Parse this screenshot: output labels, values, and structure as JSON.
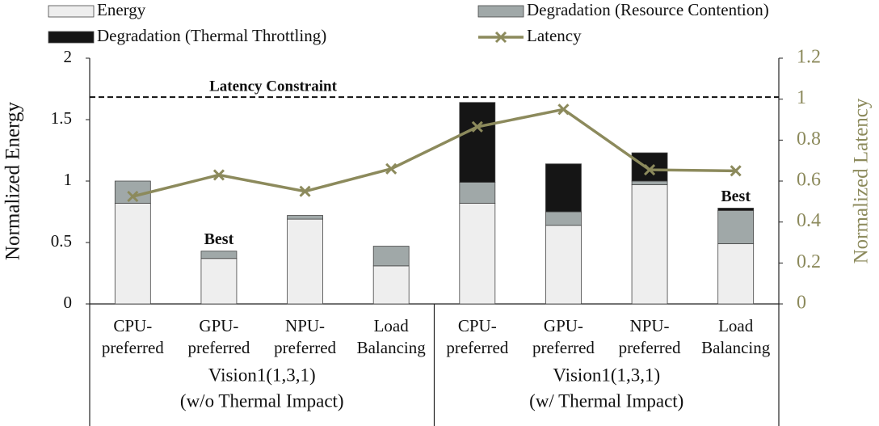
{
  "chart_data": {
    "type": "bar",
    "categories": [
      [
        "CPU-",
        "preferred"
      ],
      [
        "GPU-",
        "preferred"
      ],
      [
        "NPU-",
        "preferred"
      ],
      [
        "Load",
        "Balancing"
      ],
      [
        "CPU-",
        "preferred"
      ],
      [
        "GPU-",
        "preferred"
      ],
      [
        "NPU-",
        "preferred"
      ],
      [
        "Load",
        "Balancing"
      ]
    ],
    "groups": [
      [
        "Vision1(1,3,1)",
        "(w/o Thermal Impact)"
      ],
      [
        "Vision1(1,3,1)",
        "(w/ Thermal Impact)"
      ]
    ],
    "series": [
      {
        "name": "Energy",
        "color": "#eeeeee",
        "values": [
          0.82,
          0.37,
          0.69,
          0.31,
          0.82,
          0.64,
          0.97,
          0.49
        ]
      },
      {
        "name": "Degradation (Resource Contention)",
        "color": "#a0a8a8",
        "values": [
          0.18,
          0.06,
          0.03,
          0.16,
          0.17,
          0.11,
          0.03,
          0.27
        ]
      },
      {
        "name": "Degradation (Thermal Throttling)",
        "color": "#151515",
        "values": [
          0,
          0,
          0,
          0,
          0.65,
          0.39,
          0.23,
          0.02
        ]
      },
      {
        "name": "Latency",
        "color": "#8c8a5c",
        "type": "line",
        "axis": "y2",
        "values": [
          0.525,
          0.63,
          0.55,
          0.66,
          0.865,
          0.95,
          0.655,
          0.65
        ]
      }
    ],
    "ylabel": "Normalized Energy",
    "y2label": "Normalized Latency",
    "ylim": [
      0,
      2
    ],
    "yticks": [
      0,
      0.5,
      1,
      1.5,
      2
    ],
    "y2lim": [
      0,
      1.2
    ],
    "y2ticks": [
      0,
      0.2,
      0.4,
      0.6,
      0.8,
      1,
      1.2
    ],
    "reference_line": {
      "label": "Latency Constraint",
      "value": 1.01,
      "axis": "y2"
    },
    "annotations": [
      {
        "text": "Best",
        "category": 1
      },
      {
        "text": "Best",
        "category": 7
      }
    ]
  }
}
